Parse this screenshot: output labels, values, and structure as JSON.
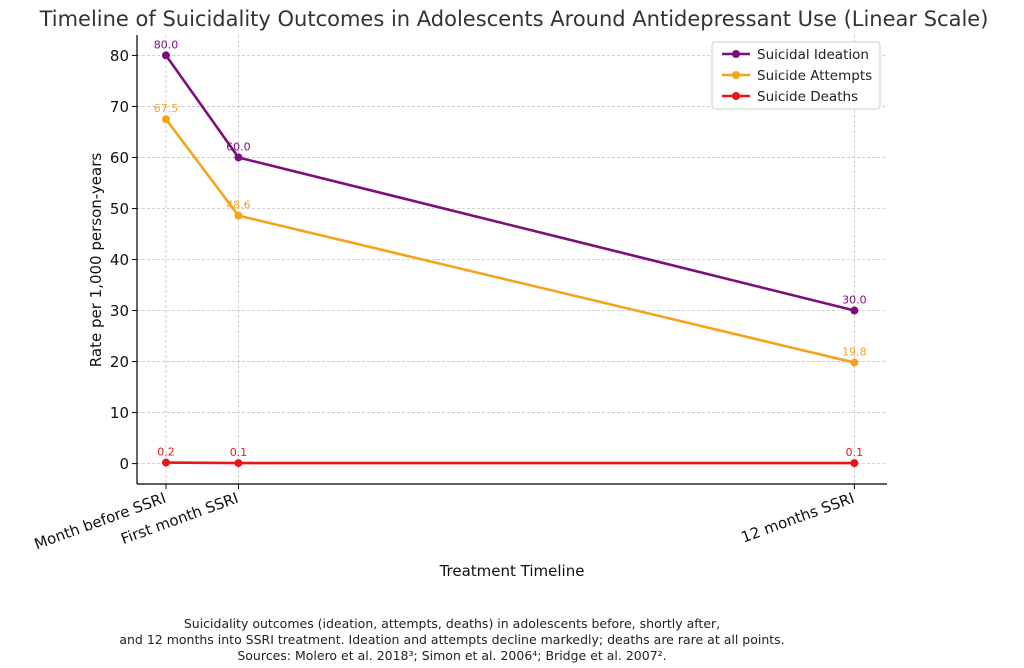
{
  "chart_data": {
    "type": "line",
    "title": "Timeline of Suicidality Outcomes in Adolescents Around Antidepressant Use (Linear Scale)",
    "xlabel": "Treatment Timeline",
    "ylabel": "Rate per 1,000 person-years",
    "x_positions": [
      0,
      1,
      9.5
    ],
    "categories": [
      "Month before SSRI",
      "First month SSRI",
      "12 months SSRI"
    ],
    "ylim": [
      -4,
      84
    ],
    "xlim": [
      -0.4,
      9.95
    ],
    "yticks": [
      0,
      10,
      20,
      30,
      40,
      50,
      60,
      70,
      80
    ],
    "grid": true,
    "legend_position": "top-right",
    "series": [
      {
        "name": "Suicidal Ideation",
        "color": "#7a0f7d",
        "values": [
          80.0,
          60.0,
          30.0
        ],
        "labels": [
          "80.0",
          "60.0",
          "30.0"
        ]
      },
      {
        "name": "Suicide Attempts",
        "color": "#f5a31a",
        "values": [
          67.5,
          48.6,
          19.8
        ],
        "labels": [
          "67.5",
          "48.6",
          "19.8"
        ]
      },
      {
        "name": "Suicide Deaths",
        "color": "#e8151b",
        "values": [
          0.2,
          0.1,
          0.1
        ],
        "labels": [
          "0.2",
          "0.1",
          "0.1"
        ]
      }
    ]
  },
  "caption": {
    "line1": "Suicidality outcomes (ideation, attempts, deaths) in adolescents before, shortly after,",
    "line2": "and 12 months into SSRI treatment. Ideation and attempts decline markedly; deaths are rare at all points.",
    "line3": "Sources: Molero et al. 2018³; Simon et al. 2006⁴; Bridge et al. 2007²."
  }
}
